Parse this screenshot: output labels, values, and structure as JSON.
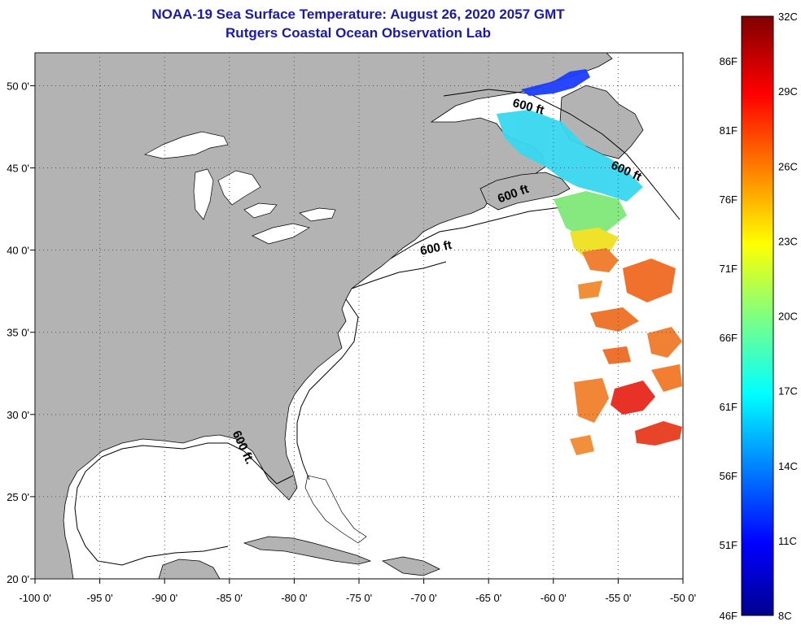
{
  "header": {
    "title": "NOAA-19 Sea Surface Temperature:  August 26, 2020 2057 GMT",
    "subtitle": "Rutgers Coastal Ocean Observation Lab"
  },
  "map": {
    "lon_range": [
      -100,
      -50
    ],
    "lat_range": [
      20,
      52
    ],
    "lon_ticks": [
      {
        "value": -100,
        "label": "-100 0'"
      },
      {
        "value": -95,
        "label": "-95 0'"
      },
      {
        "value": -90,
        "label": "-90 0'"
      },
      {
        "value": -85,
        "label": "-85 0'"
      },
      {
        "value": -80,
        "label": "-80 0'"
      },
      {
        "value": -75,
        "label": "-75 0'"
      },
      {
        "value": -70,
        "label": "-70 0'"
      },
      {
        "value": -65,
        "label": "-65 0'"
      },
      {
        "value": -60,
        "label": "-60 0'"
      },
      {
        "value": -55,
        "label": "-55 0'"
      },
      {
        "value": -50,
        "label": "-50 0'"
      }
    ],
    "lat_ticks": [
      {
        "value": 50,
        "label": "50 0'"
      },
      {
        "value": 45,
        "label": "45 0'"
      },
      {
        "value": 40,
        "label": "40 0'"
      },
      {
        "value": 35,
        "label": "35 0'"
      },
      {
        "value": 30,
        "label": "30 0'"
      },
      {
        "value": 25,
        "label": "25 0'"
      },
      {
        "value": 20,
        "label": "20 0'"
      }
    ],
    "isobath_labels": [
      {
        "text": "600 ft",
        "lon": -62,
        "lat": 48.5,
        "rotate": 15
      },
      {
        "text": "600 ft",
        "lon": -54.5,
        "lat": 44.6,
        "rotate": 25
      },
      {
        "text": "600 ft",
        "lon": -63,
        "lat": 43.2,
        "rotate": -20
      },
      {
        "text": "600 ft",
        "lon": -69,
        "lat": 39.9,
        "rotate": -12
      },
      {
        "text": "600 ft.",
        "lon": -84.2,
        "lat": 27.9,
        "rotate": 65
      }
    ],
    "colors": {
      "land": "#b3b3b3",
      "water": "#ffffff",
      "grid": "#555555"
    }
  },
  "colorbar": {
    "celsius_labels": [
      "32C",
      "29C",
      "26C",
      "23C",
      "20C",
      "17C",
      "14C",
      "11C",
      "8C"
    ],
    "fahrenheit_labels": [
      "86F",
      "81F",
      "76F",
      "71F",
      "66F",
      "61F",
      "56F",
      "51F",
      "46F"
    ],
    "range_c": [
      8,
      32
    ]
  }
}
